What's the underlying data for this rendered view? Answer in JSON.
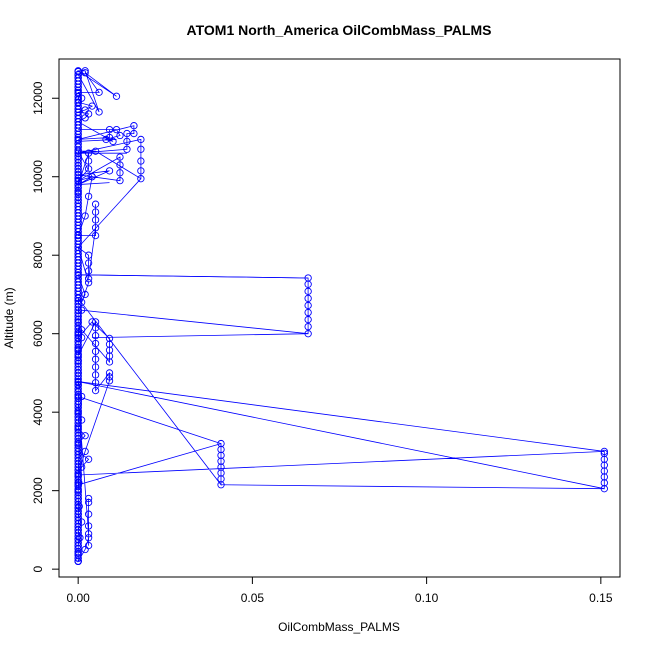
{
  "chart_data": {
    "type": "scatter",
    "title": "ATOM1 North_America OilCombMass_PALMS",
    "xlabel": "OilCombMass_PALMS",
    "ylabel": "Altitude (m)",
    "xlim": [
      -0.0055,
      0.1555
    ],
    "ylim": [
      -200,
      13000
    ],
    "xticks": [
      {
        "value": 0.0,
        "label": "0.00"
      },
      {
        "value": 0.05,
        "label": "0.05"
      },
      {
        "value": 0.1,
        "label": "0.10"
      },
      {
        "value": 0.15,
        "label": "0.15"
      }
    ],
    "yticks": [
      {
        "value": 0,
        "label": "0"
      },
      {
        "value": 2000,
        "label": "2000"
      },
      {
        "value": 4000,
        "label": "4000"
      },
      {
        "value": 6000,
        "label": "6000"
      },
      {
        "value": 8000,
        "label": "8000"
      },
      {
        "value": 10000,
        "label": "10000"
      },
      {
        "value": 12000,
        "label": "12000"
      }
    ],
    "grid": false,
    "series_color": "#0000ff",
    "x": [
      0.0,
      0.0,
      0.0,
      0.0005,
      0.0,
      0.001,
      0.0,
      0.0003,
      0.0,
      0.0,
      0.0002,
      0.0,
      0.001,
      0.003,
      0.0,
      0.0,
      0.002,
      0.0,
      0.001,
      0.0,
      0.0,
      0.0,
      0.002,
      0.003,
      0.003,
      0.003,
      0.003,
      0.003,
      0.003,
      0.003,
      0.0,
      0.0,
      0.0,
      0.0,
      0.0,
      0.0,
      0.0,
      0.0,
      0.0,
      0.041,
      0.041,
      0.041,
      0.041,
      0.041,
      0.041,
      0.041,
      0.041,
      0.0,
      0.001,
      0.0,
      0.151,
      0.151,
      0.151,
      0.151,
      0.151,
      0.151,
      0.151,
      0.151,
      0.0,
      0.002,
      0.009,
      0.009,
      0.009,
      0.005,
      0.005,
      0.005,
      0.005,
      0.005,
      0.005,
      0.005,
      0.005,
      0.005,
      0.005,
      0.0,
      0.001,
      0.001,
      0.009,
      0.009,
      0.009,
      0.009,
      0.009,
      0.004,
      0.0,
      0.001,
      0.066,
      0.066,
      0.066,
      0.066,
      0.066,
      0.066,
      0.066,
      0.066,
      0.066,
      0.0,
      0.002,
      0.001,
      0.003,
      0.0,
      0.003,
      0.003,
      0.003,
      0.003,
      0.005,
      0.005,
      0.005,
      0.005,
      0.005,
      0.0,
      0.002,
      0.003,
      0.004,
      0.0,
      0.0,
      0.0,
      0.003,
      0.003,
      0.003,
      0.0,
      0.009,
      0.0,
      0.012,
      0.012,
      0.012,
      0.012,
      0.0,
      0.004,
      0.0,
      0.005,
      0.018,
      0.018,
      0.018,
      0.018,
      0.018,
      0.0,
      0.014,
      0.014,
      0.014,
      0.016,
      0.016,
      0.0,
      0.009,
      0.009,
      0.011,
      0.012,
      0.008,
      0.01,
      0.0,
      0.002,
      0.003,
      0.0,
      0.002,
      0.004,
      0.0,
      0.001,
      0.0,
      0.006,
      0.002,
      0.011,
      0.0,
      0.002,
      0.006,
      0.0
    ],
    "y": [
      200,
      400,
      600,
      800,
      1000,
      1200,
      1400,
      1600,
      1800,
      2000,
      2200,
      2400,
      2600,
      2800,
      3000,
      3200,
      3400,
      3600,
      3800,
      4000,
      4200,
      200,
      500,
      800,
      1100,
      1400,
      1700,
      1800,
      600,
      900,
      4400,
      4700,
      5000,
      5300,
      5600,
      6000,
      6300,
      6600,
      6900,
      2150,
      2300,
      2450,
      2600,
      2750,
      2900,
      3050,
      3200,
      2150,
      4400,
      4780,
      2050,
      2200,
      2350,
      2500,
      2650,
      2800,
      2950,
      3000,
      2400,
      3000,
      4800,
      4900,
      5000,
      4550,
      4750,
      4950,
      5150,
      5350,
      5550,
      5750,
      5950,
      6150,
      6300,
      5450,
      5900,
      6100,
      5280,
      5430,
      5580,
      5730,
      5880,
      6300,
      5900,
      6600,
      6000,
      6180,
      6360,
      6540,
      6720,
      6900,
      7080,
      7260,
      7420,
      7500,
      7000,
      6800,
      7300,
      8200,
      8000,
      7800,
      7600,
      7400,
      8700,
      8900,
      9100,
      9300,
      8500,
      8500,
      9000,
      9500,
      10000,
      9800,
      9600,
      9900,
      10200,
      10400,
      10600,
      9800,
      10150,
      10050,
      9900,
      10100,
      10300,
      10500,
      9900,
      10000,
      10650,
      10650,
      9950,
      10150,
      10400,
      10700,
      10950,
      10600,
      10700,
      10900,
      11100,
      11100,
      11300,
      10950,
      11000,
      11200,
      11200,
      11050,
      10950,
      10900,
      11400,
      11500,
      11600,
      11650,
      11700,
      11800,
      11900,
      12000,
      12150,
      12150,
      12650,
      12050,
      12700,
      12700,
      11650,
      12600
    ],
    "lines": [
      [
        0.0,
        9300,
        0.0,
        10650
      ],
      [
        0.0,
        7500,
        0.066,
        7420
      ],
      [
        0.066,
        6000,
        0.004,
        5900
      ],
      [
        0.0,
        4780,
        0.151,
        3000
      ],
      [
        0.041,
        2150,
        0.151,
        2050
      ],
      [
        0.0,
        4400,
        0.041,
        3200
      ],
      [
        0.0,
        8200,
        0.018,
        9950
      ],
      [
        0.0,
        9800,
        0.009,
        9850
      ],
      [
        0.0,
        10600,
        0.014,
        10600
      ],
      [
        0.0,
        11200,
        0.009,
        11200
      ],
      [
        0.0,
        10900,
        0.011,
        10950
      ]
    ]
  }
}
